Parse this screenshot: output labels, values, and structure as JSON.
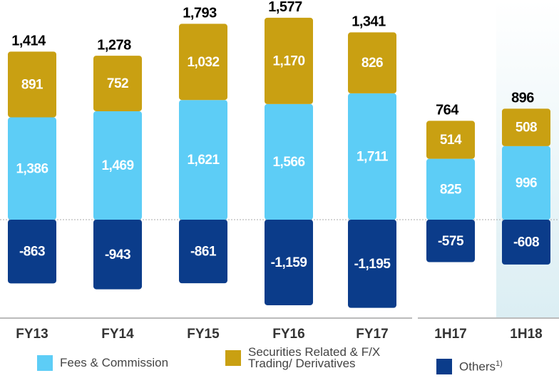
{
  "chart_data": {
    "type": "stacked_bar",
    "categories": [
      "FY13",
      "FY14",
      "FY15",
      "FY16",
      "FY17",
      "1H17",
      "1H18"
    ],
    "series": [
      {
        "name": "Fees & Commission",
        "color": "#5dcdf6",
        "values": [
          1386,
          1469,
          1621,
          1566,
          1711,
          825,
          996
        ],
        "value_labels": [
          "1,386",
          "1,469",
          "1,621",
          "1,566",
          "1,711",
          "825",
          "996"
        ]
      },
      {
        "name": "Securities Related & F/X Trading/ Derivatives",
        "color": "#c9a012",
        "values": [
          891,
          752,
          1032,
          1170,
          826,
          514,
          508
        ],
        "value_labels": [
          "891",
          "752",
          "1,032",
          "1,170",
          "826",
          "514",
          "508"
        ]
      },
      {
        "name": "Others",
        "footnote_mark": "1)",
        "color": "#0b3c8a",
        "values": [
          -863,
          -943,
          -861,
          -1159,
          -1195,
          -575,
          -608
        ],
        "value_labels": [
          "-863",
          "-943",
          "-861",
          "-1,159",
          "-1,195",
          "-575",
          "-608"
        ]
      }
    ],
    "totals": {
      "values": [
        1414,
        1278,
        1793,
        1577,
        1341,
        764,
        896
      ],
      "value_labels": [
        "1,414",
        "1,278",
        "1,793",
        "1,577",
        "1,341",
        "764",
        "896"
      ]
    }
  }
}
